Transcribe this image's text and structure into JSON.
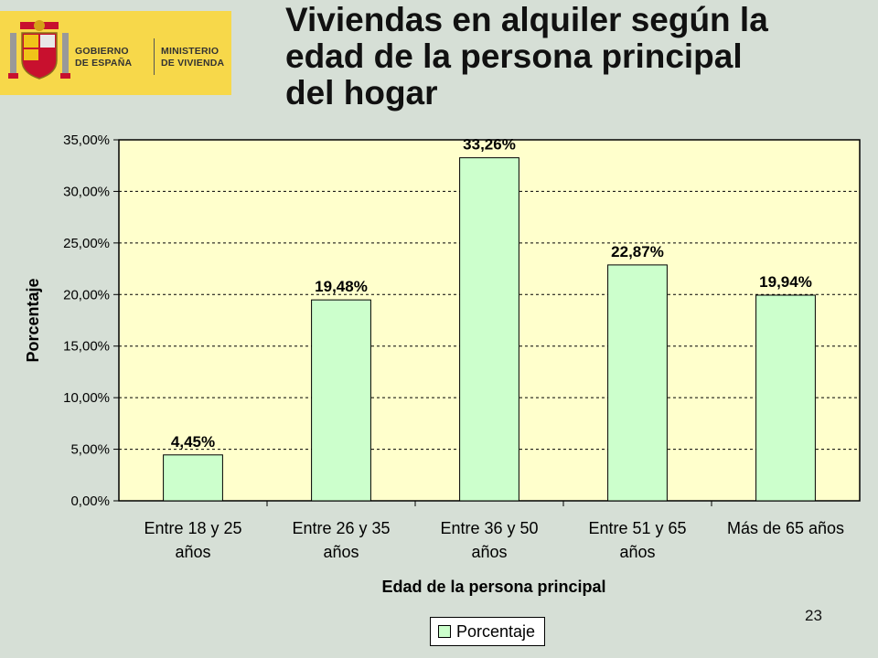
{
  "header": {
    "title_lines": [
      "Viviendas en alquiler según  la",
      "edad de la persona principal",
      "del hogar"
    ],
    "logo": {
      "left_line1": "GOBIERNO",
      "left_line2": "DE ESPAÑA",
      "right_line1": "MINISTERIO",
      "right_line2": "DE VIVIENDA"
    }
  },
  "footer": {
    "page_number": "23"
  },
  "colors": {
    "background": "#d6dfd6",
    "plot_area": "#ffffcc",
    "bar_fill": "#ccffcc",
    "logo_bg": "#f7d84a"
  },
  "chart_data": {
    "type": "bar",
    "categories": [
      [
        "Entre 18 y 25",
        "años"
      ],
      [
        "Entre 26 y 35",
        "años"
      ],
      [
        "Entre 36 y 50",
        "años"
      ],
      [
        "Entre 51 y 65",
        "años"
      ],
      [
        "Más de 65 años"
      ]
    ],
    "series": [
      {
        "name": "Porcentaje",
        "values": [
          4.45,
          19.48,
          33.26,
          22.87,
          19.94
        ],
        "data_labels": [
          "4,45%",
          "19,48%",
          "33,26%",
          "22,87%",
          "19,94%"
        ]
      }
    ],
    "xlabel": "Edad de la persona principal",
    "ylabel": "Porcentaje",
    "ylim": [
      0,
      35
    ],
    "yticks": [
      0,
      5,
      10,
      15,
      20,
      25,
      30,
      35
    ],
    "ytick_labels": [
      "0,00%",
      "5,00%",
      "10,00%",
      "15,00%",
      "20,00%",
      "25,00%",
      "30,00%",
      "35,00%"
    ],
    "grid": "horizontal dashed",
    "legend": "bottom"
  }
}
